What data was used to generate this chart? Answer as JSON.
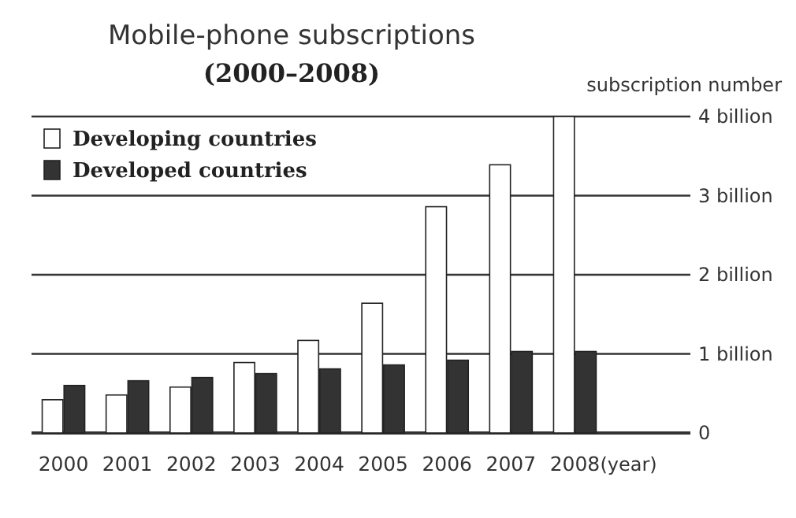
{
  "chart_data": {
    "type": "bar",
    "title": "Mobile-phone subscriptions",
    "subtitle": "(2000–2008)",
    "ylabel": "subscription number",
    "xlabel": "(year)",
    "categories": [
      "2000",
      "2001",
      "2002",
      "2003",
      "2004",
      "2005",
      "2006",
      "2007",
      "2008"
    ],
    "series": [
      {
        "name": "Developing countries",
        "color": "#ffffff",
        "values": [
          0.42,
          0.48,
          0.58,
          0.89,
          1.17,
          1.64,
          2.86,
          3.39,
          4.0
        ]
      },
      {
        "name": "Developed countries",
        "color": "#333333",
        "values": [
          0.6,
          0.66,
          0.7,
          0.75,
          0.81,
          0.86,
          0.92,
          1.03,
          1.03
        ]
      }
    ],
    "ylim": [
      0,
      4
    ],
    "yticks": [
      0,
      {
        "value": 1,
        "label": "1 billion"
      },
      {
        "value": 2,
        "label": "2 billion"
      },
      {
        "value": 3,
        "label": "3 billion"
      },
      {
        "value": 4,
        "label": "4 billion"
      }
    ],
    "grid": "y",
    "legend": "top left"
  }
}
